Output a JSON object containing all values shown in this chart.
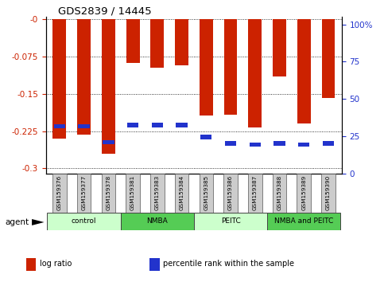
{
  "title": "GDS2839 / 14445",
  "samples": [
    "GSM159376",
    "GSM159377",
    "GSM159378",
    "GSM159381",
    "GSM159383",
    "GSM159384",
    "GSM159385",
    "GSM159386",
    "GSM159387",
    "GSM159388",
    "GSM159389",
    "GSM159390"
  ],
  "log_ratio": [
    -0.24,
    -0.232,
    -0.27,
    -0.088,
    -0.098,
    -0.092,
    -0.193,
    -0.192,
    -0.218,
    -0.115,
    -0.21,
    -0.158
  ],
  "pct_rank_y": [
    -0.215,
    -0.215,
    -0.247,
    -0.213,
    -0.213,
    -0.213,
    -0.237,
    -0.25,
    -0.252,
    -0.25,
    -0.252,
    -0.25
  ],
  "groups": [
    {
      "label": "control",
      "color": "#ccffcc",
      "start": 0,
      "end": 3
    },
    {
      "label": "NMBA",
      "color": "#55cc55",
      "start": 3,
      "end": 6
    },
    {
      "label": "PEITC",
      "color": "#ccffcc",
      "start": 6,
      "end": 9
    },
    {
      "label": "NMBA and PEITC",
      "color": "#55cc55",
      "start": 9,
      "end": 12
    }
  ],
  "bar_color": "#cc2200",
  "dot_color": "#2233cc",
  "ylim_left": [
    -0.31,
    0.005
  ],
  "ylim_right": [
    0,
    105
  ],
  "yticks_left": [
    0,
    -0.075,
    -0.15,
    -0.225,
    -0.3
  ],
  "ytick_labels_left": [
    "-0",
    "-0.075",
    "-0.15",
    "-0.225",
    "-0.3"
  ],
  "yticks_right": [
    0,
    25,
    50,
    75,
    100
  ],
  "ytick_labels_right": [
    "0",
    "25",
    "50",
    "75",
    "100%"
  ],
  "legend_items": [
    {
      "label": "log ratio",
      "color": "#cc2200"
    },
    {
      "label": "percentile rank within the sample",
      "color": "#2233cc"
    }
  ],
  "bar_width": 0.55,
  "tick_color_left": "#cc2200",
  "tick_color_right": "#2233cc",
  "bg_color": "#ffffff",
  "plot_bg": "#ffffff"
}
